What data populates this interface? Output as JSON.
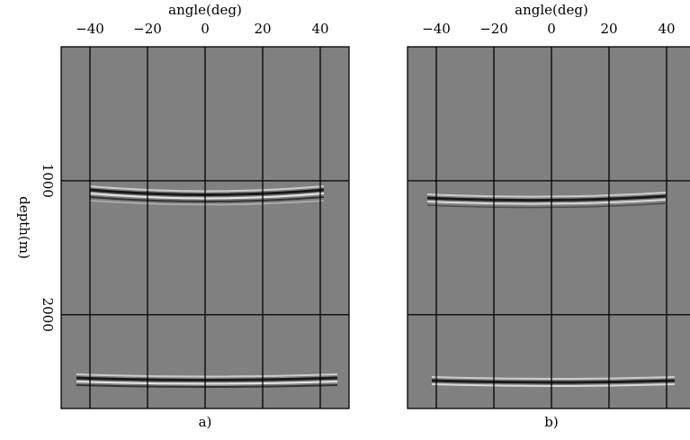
{
  "chart_data": [
    {
      "type": "seismic-image",
      "title": "angle(deg)",
      "ylabel": "depth(m)",
      "caption": "a)",
      "xlim": [
        -50,
        50
      ],
      "ylim": [
        0,
        2700
      ],
      "xticks": [
        {
          "value": -40,
          "label": "−40"
        },
        {
          "value": -20,
          "label": "−20"
        },
        0,
        20,
        40
      ],
      "yticks": [
        1000,
        2000
      ],
      "grid": true,
      "background": "#808080",
      "grid_color": "#000000"
    },
    {
      "type": "seismic-image",
      "title": "angle(deg)",
      "caption": "b)",
      "xlim": [
        -50,
        50
      ],
      "ylim": [
        0,
        2700
      ],
      "xticks": [
        {
          "value": -40,
          "label": "−40"
        },
        {
          "value": -20,
          "label": "−20"
        },
        0,
        20,
        40
      ],
      "yticks": [
        1000,
        2000
      ],
      "grid": true,
      "background": "#808080",
      "grid_color": "#000000"
    }
  ]
}
